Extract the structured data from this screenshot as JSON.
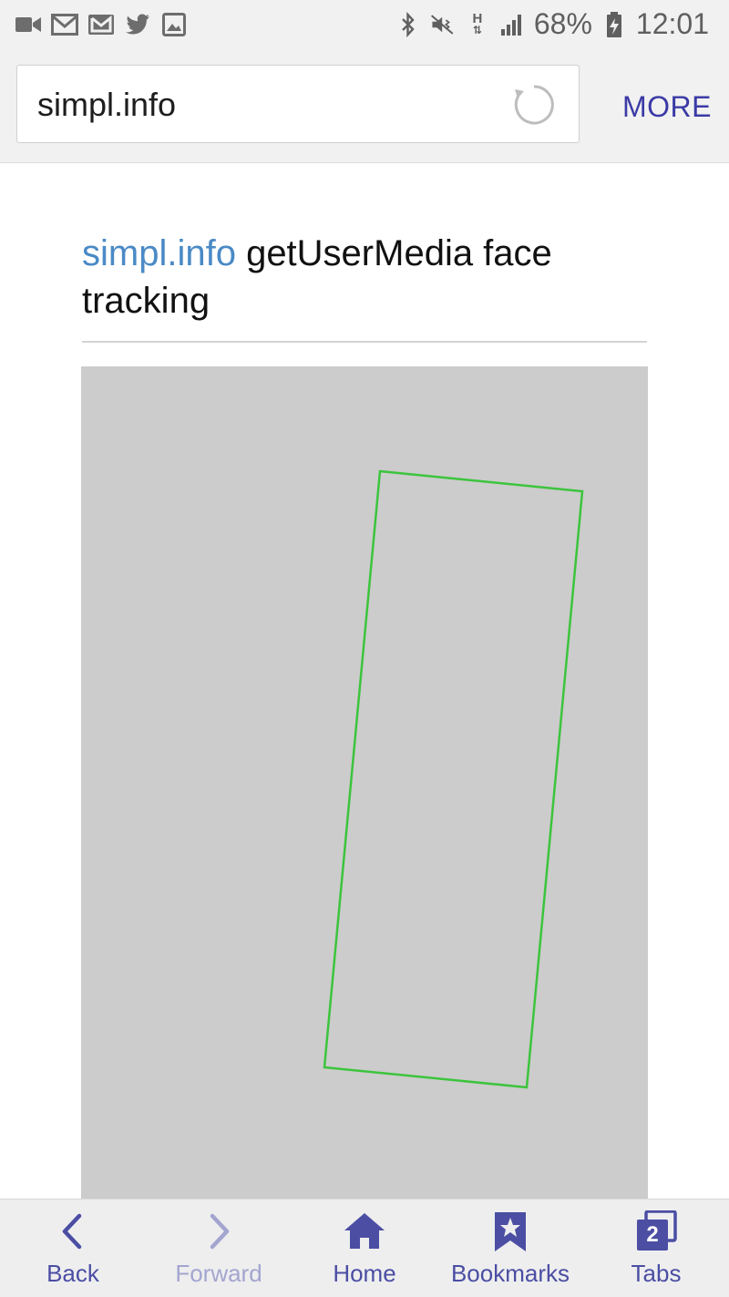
{
  "status_bar": {
    "battery": "68%",
    "time": "12:01",
    "network": "H",
    "left_icons": [
      "video-icon",
      "mail-icon",
      "gmail-icon",
      "twitter-icon",
      "image-icon"
    ],
    "right_icons": [
      "bluetooth-icon",
      "mute-icon",
      "network-h-icon",
      "signal-icon",
      "battery-icon"
    ]
  },
  "toolbar": {
    "url": "simpl.info",
    "more_label": "MORE"
  },
  "page": {
    "heading_site": "simpl.info",
    "heading_rest": " getUserMedia face tracking"
  },
  "colors": {
    "accent": "#3b3aa6",
    "link": "#4a8ac6",
    "face_box": "#3cc43c",
    "video_bg": "#cccccc"
  },
  "bottom_nav": {
    "back": "Back",
    "forward": "Forward",
    "home": "Home",
    "bookmarks": "Bookmarks",
    "tabs": "Tabs",
    "tab_count": "2"
  }
}
